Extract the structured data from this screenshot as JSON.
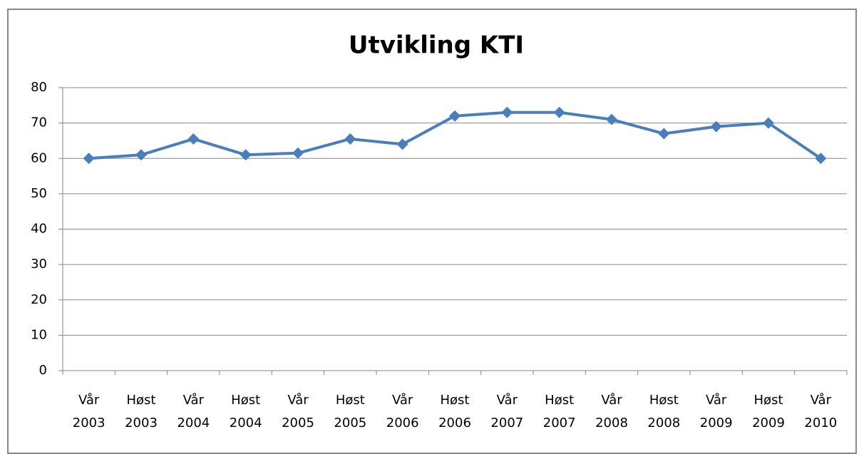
{
  "chart_data": {
    "type": "line",
    "title": "Utvikling KTI",
    "categories": [
      "Vår\n2003",
      "Høst\n2003",
      "Vår\n2004",
      "Høst\n2004",
      "Vår\n2005",
      "Høst\n2005",
      "Vår\n2006",
      "Høst\n2006",
      "Vår\n2007",
      "Høst\n2007",
      "Vår\n2008",
      "Høst\n2008",
      "Vår\n2009",
      "Høst\n2009",
      "Vår\n2010"
    ],
    "values": [
      60,
      61,
      65.5,
      61,
      61.5,
      65.5,
      64,
      72,
      73,
      73,
      71,
      67,
      69,
      70,
      60
    ],
    "color": "#4a7ebb",
    "ylim": [
      0,
      80
    ],
    "yticks": [
      0,
      10,
      20,
      30,
      40,
      50,
      60,
      70,
      80
    ],
    "grid": true
  }
}
